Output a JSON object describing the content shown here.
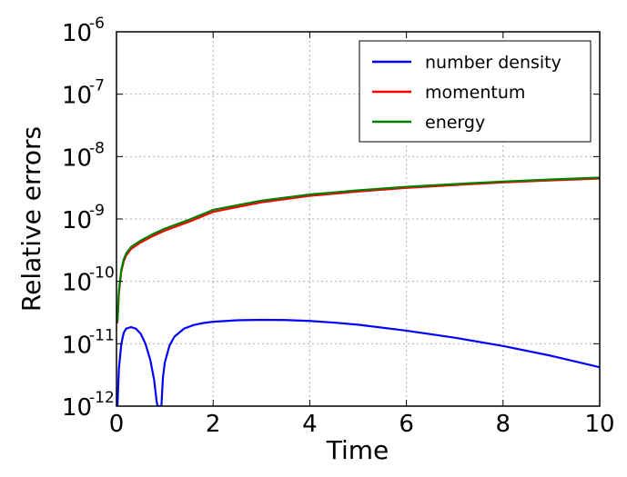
{
  "chart_data": {
    "type": "line",
    "xlabel": "Time",
    "ylabel": "Relative errors",
    "xlim": [
      0,
      10
    ],
    "ylim": [
      1e-12,
      1e-06
    ],
    "yscale": "log",
    "grid": true,
    "legend_position": "top-right",
    "x_ticks": [
      "0",
      "2",
      "4",
      "6",
      "8",
      "10"
    ],
    "y_ticks": [
      {
        "base": "10",
        "exp": "-12",
        "value": 1e-12
      },
      {
        "base": "10",
        "exp": "-11",
        "value": 1e-11
      },
      {
        "base": "10",
        "exp": "-10",
        "value": 1e-10
      },
      {
        "base": "10",
        "exp": "-9",
        "value": 1e-09
      },
      {
        "base": "10",
        "exp": "-8",
        "value": 1e-08
      },
      {
        "base": "10",
        "exp": "-7",
        "value": 1e-07
      },
      {
        "base": "10",
        "exp": "-6",
        "value": 1e-06
      }
    ],
    "series": [
      {
        "name": "number density",
        "color": "#0000ff",
        "points": [
          [
            0.02,
            1e-12
          ],
          [
            0.05,
            4e-12
          ],
          [
            0.1,
            1e-11
          ],
          [
            0.15,
            1.5e-11
          ],
          [
            0.2,
            1.75e-11
          ],
          [
            0.3,
            1.85e-11
          ],
          [
            0.4,
            1.75e-11
          ],
          [
            0.5,
            1.45e-11
          ],
          [
            0.6,
            1e-11
          ],
          [
            0.7,
            5.5e-12
          ],
          [
            0.78,
            2.6e-12
          ],
          [
            0.83,
            1.2e-12
          ],
          [
            0.85,
            1e-12
          ],
          [
            0.93,
            1e-12
          ],
          [
            0.96,
            2.8e-12
          ],
          [
            1.0,
            5e-12
          ],
          [
            1.1,
            9.5e-12
          ],
          [
            1.2,
            1.3e-11
          ],
          [
            1.4,
            1.75e-11
          ],
          [
            1.6,
            2e-11
          ],
          [
            1.8,
            2.15e-11
          ],
          [
            2.0,
            2.25e-11
          ],
          [
            2.5,
            2.38e-11
          ],
          [
            3.0,
            2.42e-11
          ],
          [
            3.5,
            2.4e-11
          ],
          [
            4.0,
            2.32e-11
          ],
          [
            4.5,
            2.18e-11
          ],
          [
            5.0,
            2.02e-11
          ],
          [
            6.0,
            1.62e-11
          ],
          [
            7.0,
            1.25e-11
          ],
          [
            8.0,
            9.2e-12
          ],
          [
            9.0,
            6.4e-12
          ],
          [
            10.0,
            4.2e-12
          ]
        ]
      },
      {
        "name": "momentum",
        "color": "#ff0000",
        "points": [
          [
            0.02,
            2.2e-11
          ],
          [
            0.05,
            6.5e-11
          ],
          [
            0.1,
            1.45e-10
          ],
          [
            0.15,
            2.1e-10
          ],
          [
            0.2,
            2.6e-10
          ],
          [
            0.3,
            3.3e-10
          ],
          [
            0.5,
            4.2e-10
          ],
          [
            0.75,
            5.3e-10
          ],
          [
            1.0,
            6.5e-10
          ],
          [
            1.5,
            9e-10
          ],
          [
            2.0,
            1.3e-09
          ],
          [
            3.0,
            1.85e-09
          ],
          [
            4.0,
            2.35e-09
          ],
          [
            5.0,
            2.75e-09
          ],
          [
            6.0,
            3.15e-09
          ],
          [
            7.0,
            3.5e-09
          ],
          [
            8.0,
            3.85e-09
          ],
          [
            9.0,
            4.15e-09
          ],
          [
            10.0,
            4.45e-09
          ]
        ]
      },
      {
        "name": "energy",
        "color": "#008000",
        "points": [
          [
            0.02,
            2.3e-11
          ],
          [
            0.05,
            7e-11
          ],
          [
            0.1,
            1.55e-10
          ],
          [
            0.15,
            2.25e-10
          ],
          [
            0.2,
            2.8e-10
          ],
          [
            0.3,
            3.55e-10
          ],
          [
            0.5,
            4.5e-10
          ],
          [
            0.75,
            5.7e-10
          ],
          [
            1.0,
            7e-10
          ],
          [
            1.5,
            9.7e-10
          ],
          [
            2.0,
            1.4e-09
          ],
          [
            3.0,
            1.97e-09
          ],
          [
            4.0,
            2.47e-09
          ],
          [
            5.0,
            2.88e-09
          ],
          [
            6.0,
            3.28e-09
          ],
          [
            7.0,
            3.63e-09
          ],
          [
            8.0,
            3.98e-09
          ],
          [
            9.0,
            4.3e-09
          ],
          [
            10.0,
            4.6e-09
          ]
        ]
      }
    ]
  }
}
